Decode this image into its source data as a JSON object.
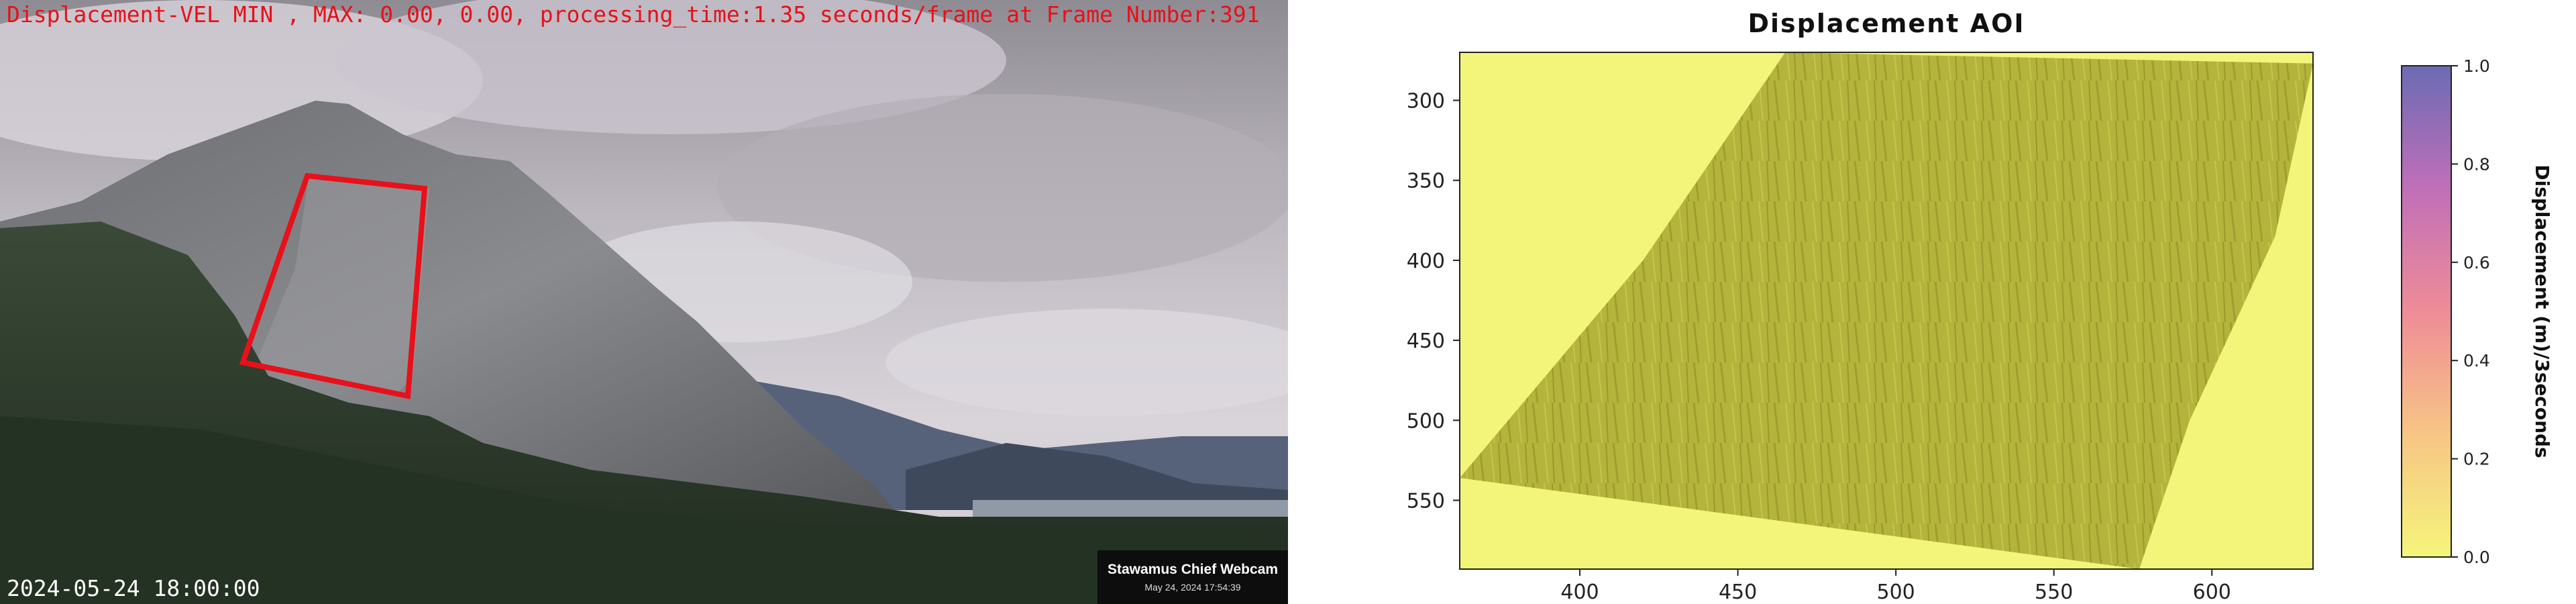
{
  "webcam": {
    "overlay_text": "Displacement-VEL MIN , MAX: 0.00, 0.00, processing_time:1.35 seconds/frame at Frame Number:391",
    "timestamp": "2024-05-24 18:00:00",
    "camera_name": "Stawamus Chief Webcam",
    "camera_date": "May 24, 2024 17:54:39",
    "aoi_color": "#e8101a"
  },
  "chart_data": {
    "type": "heatmap",
    "title": "Displacement AOI",
    "xlabel": "",
    "ylabel": "",
    "xlim": [
      362,
      632
    ],
    "ylim": [
      593,
      270
    ],
    "x_ticks": [
      400,
      450,
      500,
      550,
      600
    ],
    "y_ticks": [
      300,
      350,
      400,
      450,
      500,
      550
    ],
    "aoi_polygon": [
      [
        465,
        270
      ],
      [
        632,
        277
      ],
      [
        620,
        385
      ],
      [
        593,
        500
      ],
      [
        577,
        593
      ],
      [
        362,
        536
      ],
      [
        420,
        400
      ]
    ],
    "colorbar": {
      "label": "Displacement (m)/3seconds",
      "min": 0.0,
      "max": 1.0,
      "ticks": [
        0.0,
        0.2,
        0.4,
        0.6,
        0.8,
        1.0
      ],
      "tick_labels": [
        "0.0",
        "0.2",
        "0.4",
        "0.6",
        "0.8",
        "1.0"
      ],
      "colors": [
        "#f5f57a",
        "#f7c585",
        "#ef8c97",
        "#c06fb8",
        "#6b6bb4"
      ]
    },
    "background_color": "#f2f57a",
    "aoi_fill_color": "#b4b43c"
  }
}
